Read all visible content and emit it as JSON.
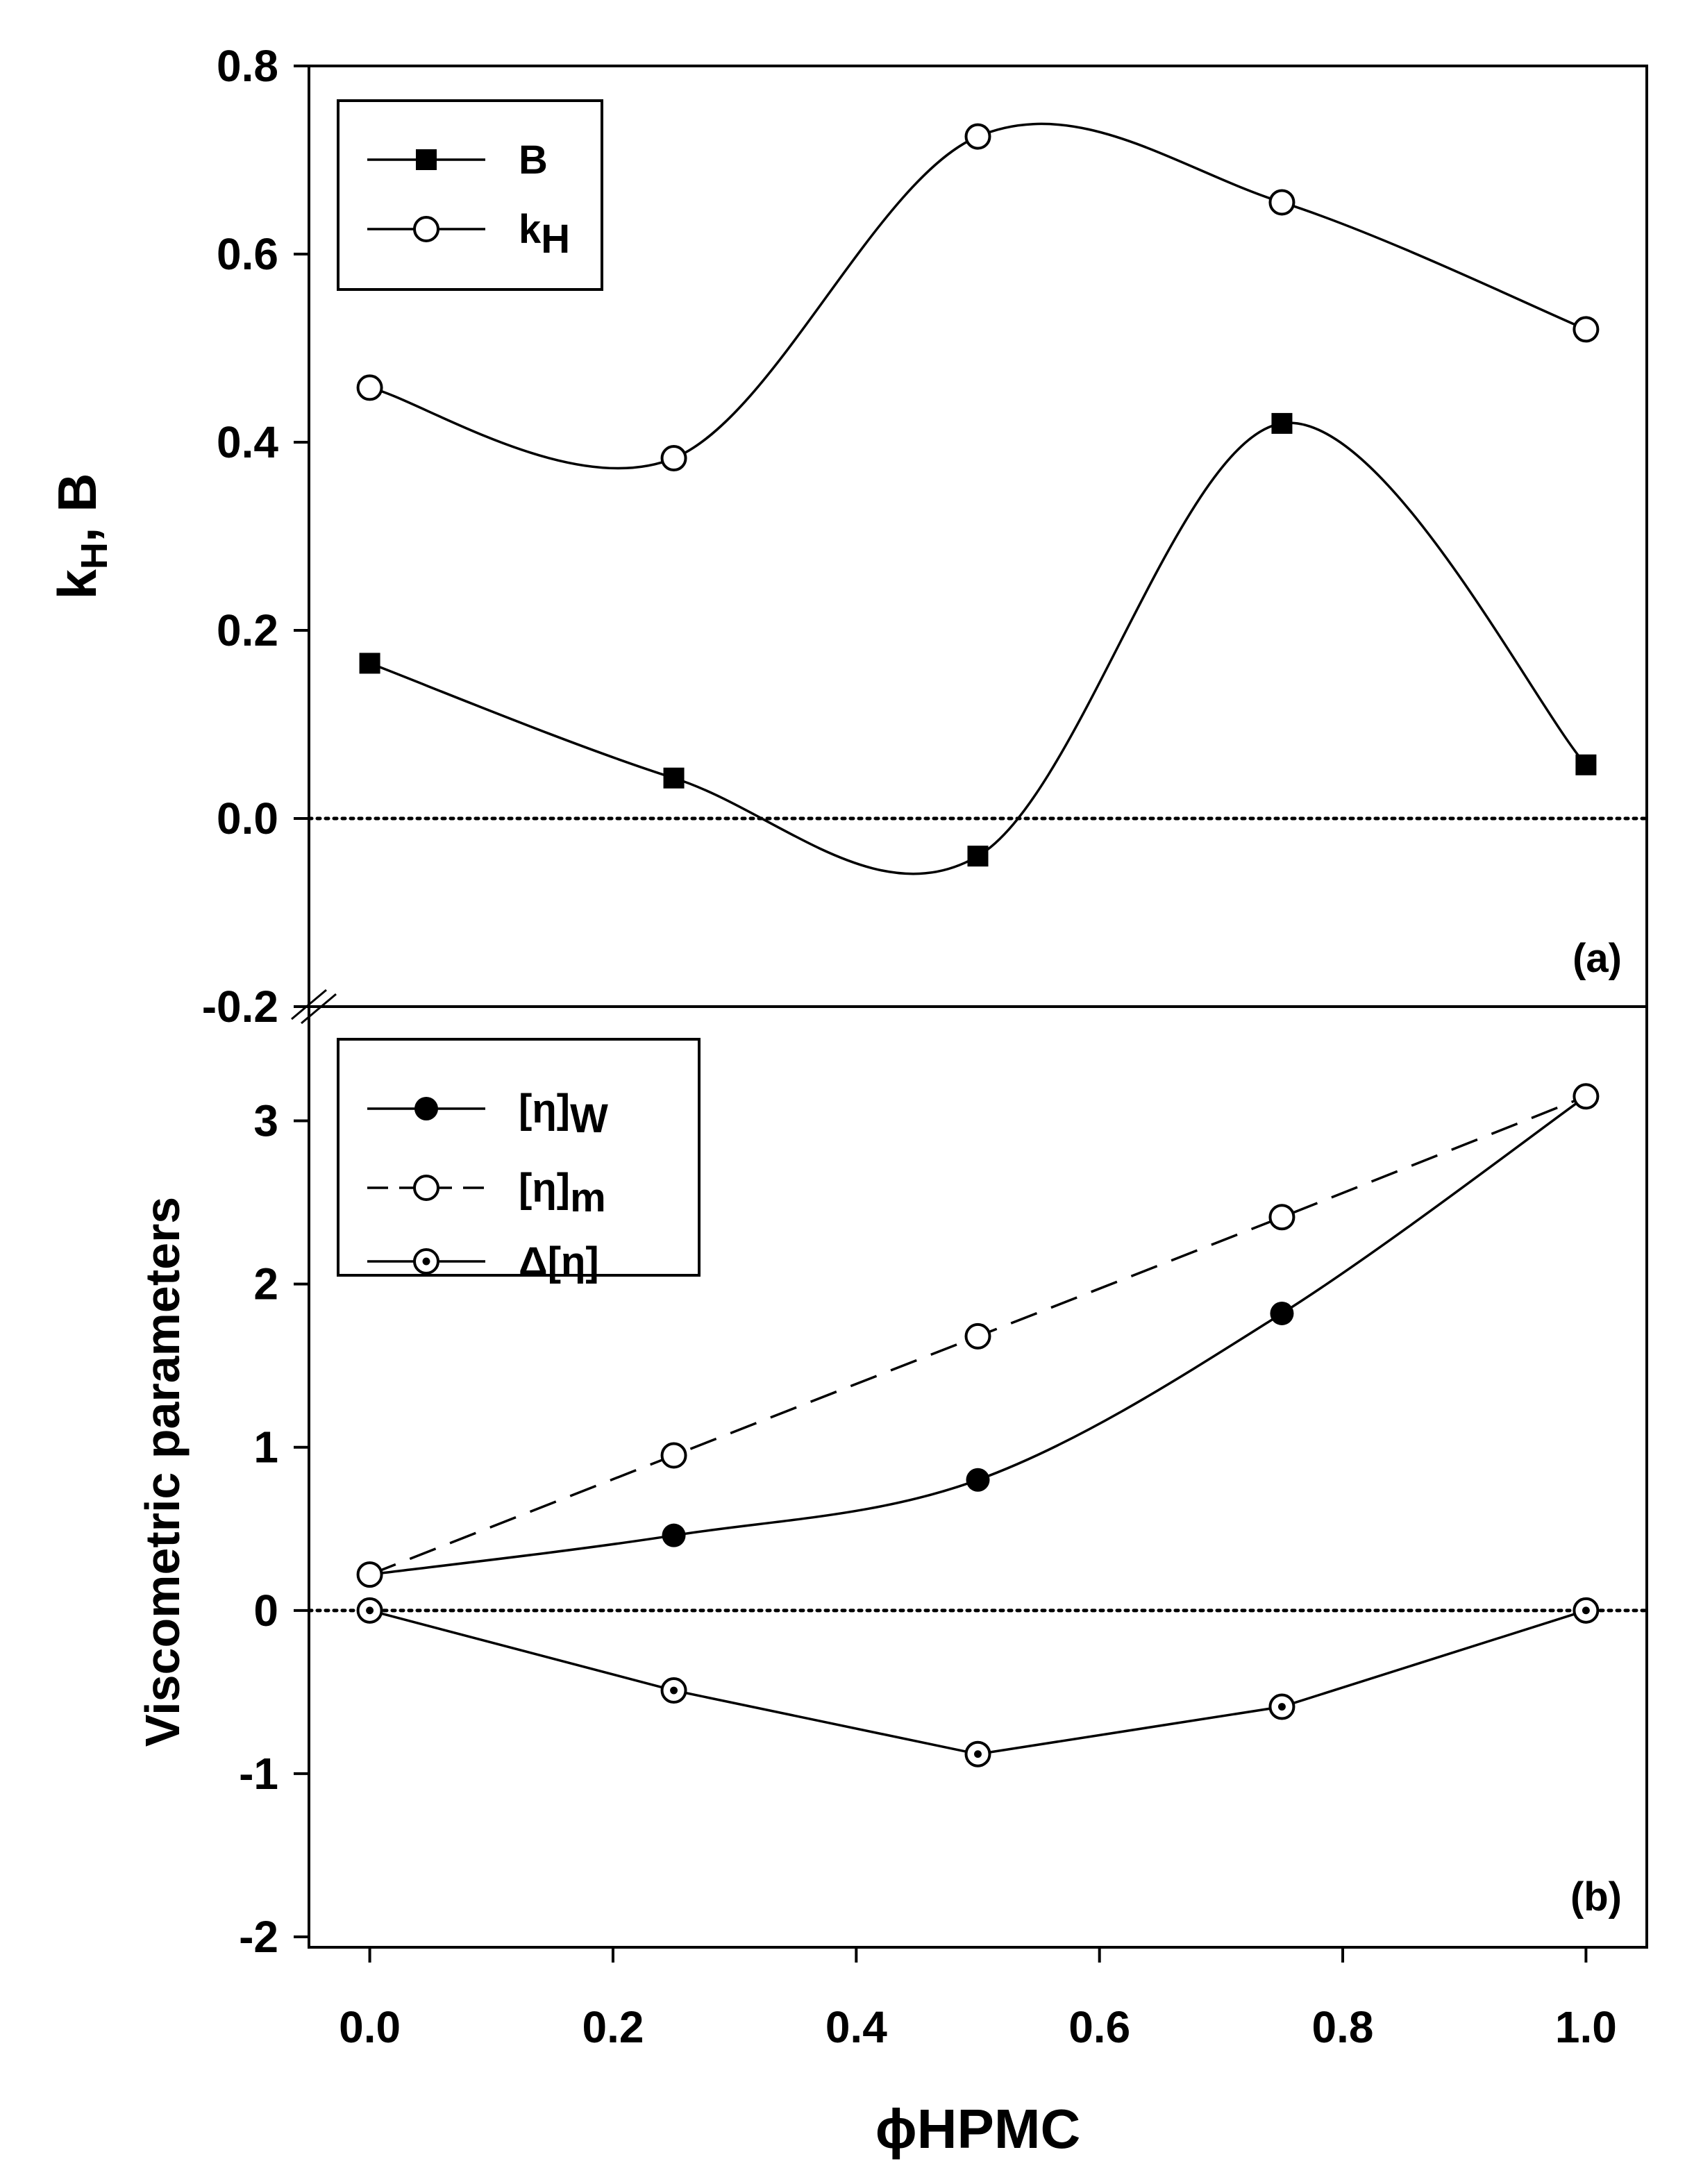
{
  "chart_data": [
    {
      "panel": "(a)",
      "type": "line",
      "ylabel": "kH, B",
      "ylabel_main": "k",
      "ylabel_sub": "H",
      "ylabel_tail": ", B",
      "xlim": [
        -0.05,
        1.05
      ],
      "ylim": [
        -0.2,
        0.8
      ],
      "yticks": [
        -0.2,
        0.0,
        0.2,
        0.4,
        0.6,
        0.8
      ],
      "ytick_labels": [
        "-0.2",
        "0.0",
        "0.2",
        "0.4",
        "0.6",
        "0.8"
      ],
      "reference_line": 0.0,
      "legend_position": "top-left",
      "series": [
        {
          "name": "B",
          "label_main": "B",
          "label_sub": "",
          "marker": "filled-square",
          "line": "solid",
          "x": [
            0.0,
            0.25,
            0.5,
            0.75,
            1.0
          ],
          "y": [
            0.165,
            0.043,
            -0.04,
            0.42,
            0.057
          ]
        },
        {
          "name": "kH",
          "label_main": "k",
          "label_sub": "H",
          "marker": "open-circle",
          "line": "solid",
          "x": [
            0.0,
            0.25,
            0.5,
            0.75,
            1.0
          ],
          "y": [
            0.458,
            0.383,
            0.725,
            0.655,
            0.52
          ]
        }
      ]
    },
    {
      "panel": "(b)",
      "type": "line",
      "ylabel": "Viscometric parameters",
      "xlabel": "ϕHPMC",
      "xlim": [
        -0.05,
        1.05
      ],
      "ylim": [
        -2,
        3.7
      ],
      "xticks": [
        0.0,
        0.2,
        0.4,
        0.6,
        0.8,
        1.0
      ],
      "xtick_labels": [
        "0.0",
        "0.2",
        "0.4",
        "0.6",
        "0.8",
        "1.0"
      ],
      "yticks": [
        -2,
        -1,
        0,
        1,
        2,
        3
      ],
      "ytick_labels": [
        "-2",
        "-1",
        "0",
        "1",
        "2",
        "3"
      ],
      "reference_line": 0.0,
      "legend_position": "top-left",
      "series": [
        {
          "name": "[η]W",
          "label_main": "[η]",
          "label_sub": "W",
          "marker": "filled-circle",
          "line": "solid",
          "x": [
            0.0,
            0.25,
            0.5,
            0.75,
            1.0
          ],
          "y": [
            0.22,
            0.46,
            0.8,
            1.82,
            3.15
          ]
        },
        {
          "name": "[η]m",
          "label_main": "[η]",
          "label_sub": "m",
          "marker": "open-circle",
          "line": "dashed",
          "x": [
            0.0,
            0.25,
            0.5,
            0.75,
            1.0
          ],
          "y": [
            0.22,
            0.95,
            1.68,
            2.41,
            3.15
          ]
        },
        {
          "name": "Δ[η]",
          "label_main": "Δ[η]",
          "label_sub": "",
          "marker": "dotted-circle",
          "line": "solid",
          "x": [
            0.0,
            0.25,
            0.5,
            0.75,
            1.0
          ],
          "y": [
            0.0,
            -0.49,
            -0.88,
            -0.59,
            0.0
          ]
        }
      ]
    }
  ]
}
